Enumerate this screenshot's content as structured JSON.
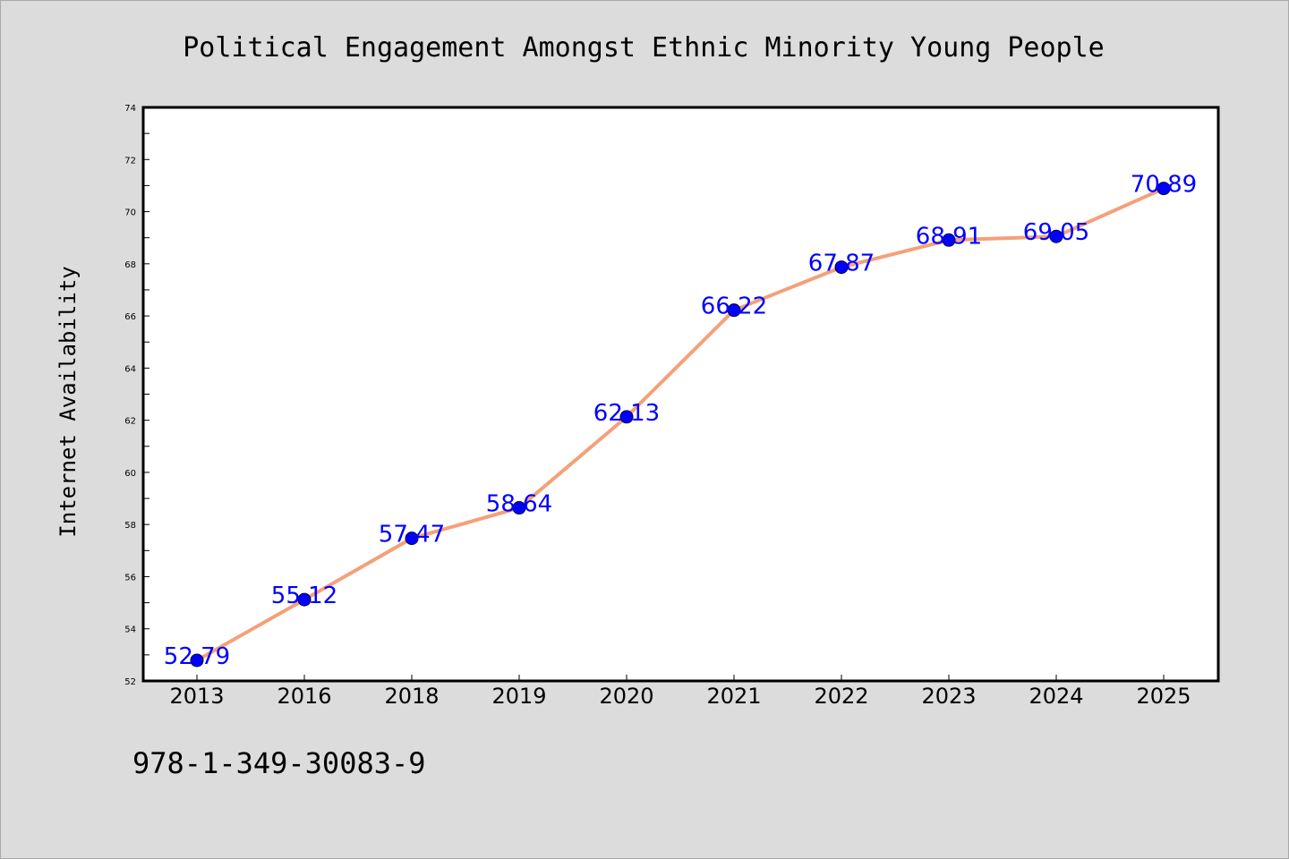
{
  "chart_data": {
    "type": "line",
    "title": "Political Engagement Amongst Ethnic Minority Young People",
    "xlabel": "",
    "ylabel": "Internet Availability",
    "categories": [
      "2013",
      "2016",
      "2018",
      "2019",
      "2020",
      "2021",
      "2022",
      "2023",
      "2024",
      "2025"
    ],
    "values": [
      52.79,
      55.12,
      57.47,
      58.64,
      62.13,
      66.22,
      67.87,
      68.91,
      69.05,
      70.89
    ],
    "data_labels": [
      "52.79",
      "55.12",
      "57.47",
      "58.64",
      "62.13",
      "66.22",
      "67.87",
      "68.91",
      "69.05",
      "70.89"
    ],
    "ylim": [
      52,
      74
    ],
    "yticks": [
      52,
      54,
      56,
      58,
      60,
      62,
      64,
      66,
      68,
      70,
      72,
      74
    ],
    "grid": false,
    "colors": {
      "line": "#f5a07a",
      "marker": "#0000ff",
      "label": "#0000ff",
      "background": "#dcdcdc",
      "plot_area": "#ffffff"
    }
  },
  "footer": {
    "isbn": "978-1-349-30083-9"
  }
}
